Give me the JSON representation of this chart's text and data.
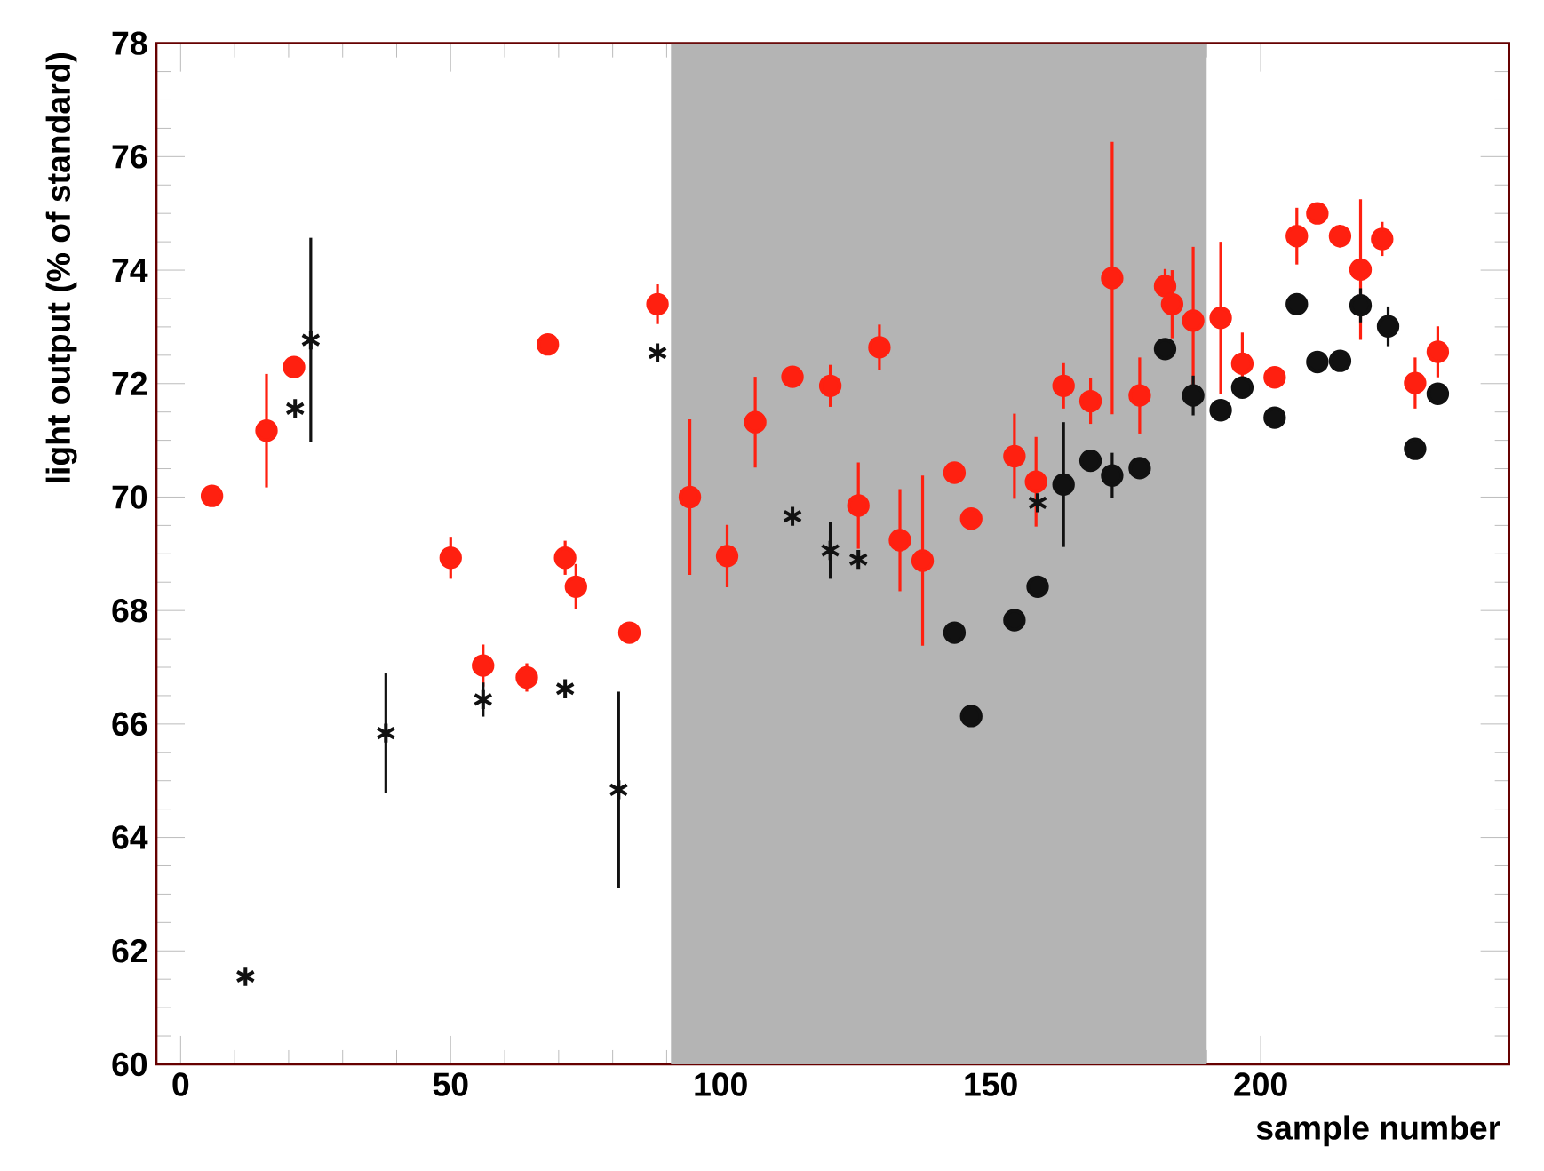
{
  "chart_data": {
    "type": "scatter",
    "xlabel": "sample number",
    "ylabel": "light output (% of standard)",
    "xlim": [
      -4.5,
      246
    ],
    "xticks": [
      0,
      50,
      100,
      150,
      200
    ],
    "ylim": [
      60,
      78
    ],
    "yticks": [
      60,
      62,
      64,
      66,
      68,
      70,
      72,
      74,
      76,
      78
    ],
    "bands": [
      {
        "axis": "x",
        "from": 90.8,
        "to": 190,
        "color": "#b4b4b4"
      }
    ],
    "series": [
      {
        "color": "#ff2010",
        "marker": "circle",
        "x": [
          5.8,
          15.9,
          21,
          50,
          56,
          64.1,
          68,
          71.2,
          73.2,
          83.1,
          88.3,
          94.3,
          101.2,
          106.4,
          113.3,
          120.3,
          125.5,
          129.4,
          133.2,
          137.4,
          143.3,
          146.4,
          154.4,
          158.4,
          163.5,
          168.5,
          172.5,
          177.6,
          182.3,
          183.6,
          187.5,
          192.6,
          196.6,
          202.6,
          206.7,
          210.5,
          214.7,
          218.5,
          222.5,
          228.6,
          232.8
        ],
        "values": [
          70.02,
          71.17,
          72.29,
          68.93,
          67.03,
          66.82,
          72.69,
          68.93,
          68.42,
          67.61,
          73.4,
          70.0,
          68.96,
          71.32,
          72.12,
          71.96,
          69.85,
          72.64,
          69.24,
          68.88,
          70.43,
          69.62,
          70.72,
          70.27,
          71.96,
          71.69,
          73.86,
          71.79,
          73.72,
          73.4,
          73.11,
          73.16,
          72.35,
          72.11,
          74.6,
          75.0,
          74.6,
          74.01,
          74.55,
          72.01,
          72.56
        ],
        "errors": [
          null,
          1.0,
          null,
          0.37,
          0.37,
          0.25,
          null,
          0.3,
          0.4,
          null,
          0.35,
          1.37,
          0.55,
          0.8,
          null,
          0.37,
          0.76,
          0.4,
          0.9,
          1.5,
          null,
          null,
          0.75,
          0.79,
          0.4,
          0.4,
          2.4,
          0.67,
          0.3,
          0.6,
          1.3,
          1.34,
          0.55,
          null,
          0.5,
          0.1,
          0.2,
          1.24,
          0.3,
          0.45,
          0.45
        ]
      },
      {
        "color": "#111111",
        "marker": "cross",
        "x": [
          12,
          21.2,
          24.1,
          38,
          56,
          71.2,
          81.1,
          88.3,
          113.3,
          120.3,
          125.5,
          158.7
        ],
        "values": [
          61.55,
          71.56,
          72.77,
          65.84,
          66.43,
          66.62,
          64.84,
          72.54,
          69.66,
          69.06,
          68.9,
          69.9
        ],
        "errors": [
          0.1,
          null,
          1.8,
          1.05,
          0.3,
          null,
          1.73,
          null,
          null,
          0.5,
          null,
          null
        ]
      },
      {
        "color": "#111111",
        "marker": "circle",
        "x": [
          143.3,
          146.4,
          154.4,
          158.7,
          163.5,
          168.5,
          172.5,
          177.6,
          182.3,
          187.5,
          192.6,
          196.6,
          202.6,
          206.7,
          210.5,
          214.7,
          218.5,
          223.6,
          228.6,
          232.8
        ],
        "values": [
          67.61,
          66.14,
          67.83,
          68.42,
          70.22,
          70.64,
          70.38,
          70.51,
          72.61,
          71.79,
          71.53,
          71.93,
          71.4,
          73.4,
          72.38,
          72.4,
          73.38,
          73.01,
          70.85,
          71.82
        ],
        "errors": [
          null,
          null,
          null,
          null,
          1.1,
          null,
          0.4,
          null,
          null,
          0.35,
          null,
          null,
          null,
          null,
          null,
          null,
          0.3,
          0.35,
          null,
          null
        ]
      }
    ]
  }
}
